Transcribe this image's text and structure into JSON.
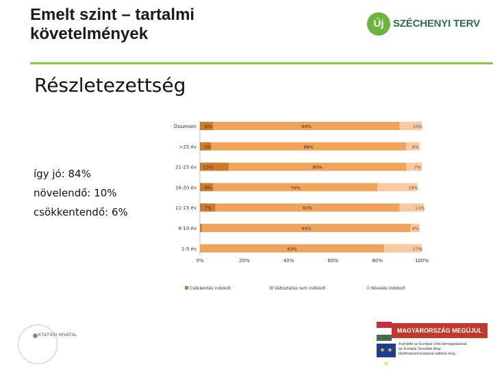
{
  "header": {
    "title_line1": "Emelt szint – tartalmi",
    "title_line2": "követelmények"
  },
  "logo": {
    "mark": "Új",
    "text": "SZÉCHENYI TERV"
  },
  "subtitle": "Részletezettség",
  "summary": {
    "line1": "így jó: 84%",
    "line2": "növelendő: 10%",
    "line3": "csökkentendő: 6%"
  },
  "colors": {
    "csokkentes": "#cc7a2e",
    "valtoztatas": "#f0a35a",
    "noveles": "#f9c9a0",
    "accent": "#8dc63f"
  },
  "chart_data": {
    "type": "bar",
    "orientation": "horizontal",
    "stacked": true,
    "categories": [
      "Összesen",
      ">25 év",
      "21-25 év",
      "16-20 év",
      "11-15 év",
      "6-10 év",
      "1-5 év"
    ],
    "series": [
      {
        "name": "Csökkentés indokolt",
        "values": [
          6,
          5,
          13,
          6,
          7,
          1,
          0
        ],
        "labels": [
          "6%",
          "5%",
          "13%",
          "6%",
          "7%",
          "1%",
          "0%"
        ]
      },
      {
        "name": "Változtatás nem indokolt",
        "values": [
          84,
          88,
          80,
          74,
          83,
          94,
          83
        ],
        "labels": [
          "84%",
          "88%",
          "80%",
          "74%",
          "83%",
          "94%",
          "83%"
        ]
      },
      {
        "name": "Növelés indokolt",
        "values": [
          10,
          6,
          7,
          18,
          11,
          4,
          17
        ],
        "labels": [
          "10%",
          "6%",
          "7%",
          "18%",
          "11%",
          "4%",
          "17%"
        ]
      }
    ],
    "xlim": [
      0,
      100
    ],
    "xticks": [
      "0%",
      "20%",
      "40%",
      "60%",
      "80%",
      "100%"
    ],
    "legend_position": "bottom"
  },
  "footer": {
    "office_label": "KTATÁSI HIVATAL",
    "badge": "MAGYARORSZÁG MEGÚJUL",
    "eu_lines": [
      "A projekt az Európai Unió támogatásával,",
      "az Európai Szociális Alap",
      "társfinanszírozásával valósul meg."
    ]
  }
}
